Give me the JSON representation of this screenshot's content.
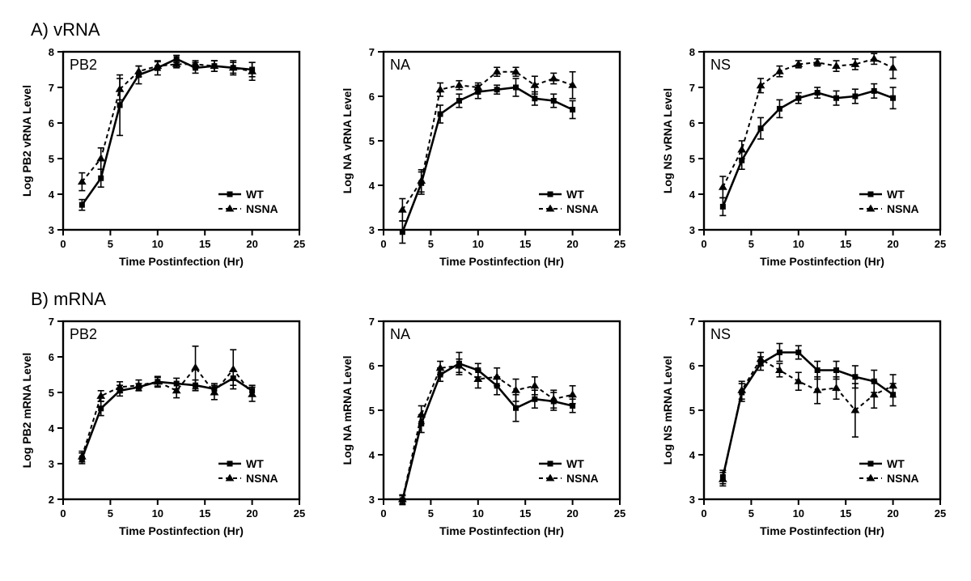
{
  "sections": {
    "A": {
      "label": "A) vRNA"
    },
    "B": {
      "label": "B) mRNA"
    }
  },
  "global": {
    "xlabel": "Time Postinfection  (Hr)",
    "xlim": [
      0,
      25
    ],
    "xticks": [
      0,
      5,
      10,
      15,
      20,
      25
    ],
    "x_data": [
      2,
      4,
      6,
      8,
      10,
      12,
      14,
      16,
      18,
      20
    ],
    "colors": {
      "axis": "#000000",
      "wt": "#000000",
      "nsna": "#000000",
      "bg": "#ffffff"
    },
    "legend": {
      "wt": "WT",
      "nsna": "NSNA"
    },
    "axis_fontsize": 14,
    "tick_fontsize": 13,
    "inset_fontsize": 18,
    "line_width_wt": 2.6,
    "line_width_nsna": 2.0,
    "marker_size_wt": 7,
    "marker_size_nsna": 7,
    "dash": "5,4"
  },
  "panels": [
    {
      "id": "A_PB2",
      "inset": "PB2",
      "ylabel": "Log PB2 vRNA Level",
      "ylim": [
        3,
        8
      ],
      "yticks": [
        3,
        4,
        5,
        6,
        7,
        8
      ],
      "legend_pos": "bottom-right",
      "wt": {
        "y": [
          3.7,
          4.45,
          6.5,
          7.35,
          7.55,
          7.8,
          7.55,
          7.6,
          7.55,
          7.5
        ],
        "err": [
          0.15,
          0.25,
          0.85,
          0.25,
          0.2,
          0.1,
          0.15,
          0.15,
          0.2,
          0.2
        ]
      },
      "nsna": {
        "y": [
          4.35,
          5.0,
          6.95,
          7.45,
          7.6,
          7.65,
          7.65,
          7.6,
          7.55,
          7.45
        ],
        "err": [
          0.25,
          0.3,
          0.3,
          0.15,
          0.12,
          0.1,
          0.1,
          0.15,
          0.15,
          0.25
        ]
      }
    },
    {
      "id": "A_NA",
      "inset": "NA",
      "ylabel": "Log NA vRNA Level",
      "ylim": [
        3,
        7
      ],
      "yticks": [
        3,
        4,
        5,
        6,
        7
      ],
      "legend_pos": "bottom-right",
      "wt": {
        "y": [
          2.95,
          4.05,
          5.6,
          5.9,
          6.1,
          6.15,
          6.2,
          5.95,
          5.9,
          5.7
        ],
        "err": [
          0.25,
          0.25,
          0.2,
          0.15,
          0.15,
          0.1,
          0.2,
          0.15,
          0.15,
          0.2
        ]
      },
      "nsna": {
        "y": [
          3.45,
          4.1,
          6.15,
          6.25,
          6.2,
          6.55,
          6.55,
          6.25,
          6.4,
          6.25
        ],
        "err": [
          0.25,
          0.25,
          0.15,
          0.1,
          0.1,
          0.1,
          0.1,
          0.2,
          0.12,
          0.3
        ]
      }
    },
    {
      "id": "A_NS",
      "inset": "NS",
      "ylabel": "Log NS vRNA Level",
      "ylim": [
        3,
        8
      ],
      "yticks": [
        3,
        4,
        5,
        6,
        7,
        8
      ],
      "legend_pos": "bottom-right",
      "wt": {
        "y": [
          3.65,
          4.95,
          5.85,
          6.4,
          6.7,
          6.85,
          6.7,
          6.75,
          6.9,
          6.7
        ],
        "err": [
          0.25,
          0.25,
          0.3,
          0.25,
          0.15,
          0.15,
          0.2,
          0.2,
          0.2,
          0.3
        ]
      },
      "nsna": {
        "y": [
          4.2,
          5.25,
          7.05,
          7.45,
          7.65,
          7.7,
          7.6,
          7.65,
          7.8,
          7.55
        ],
        "err": [
          0.3,
          0.25,
          0.2,
          0.15,
          0.1,
          0.1,
          0.15,
          0.15,
          0.15,
          0.3
        ]
      }
    },
    {
      "id": "B_PB2",
      "inset": "PB2",
      "ylabel": "Log PB2 mRNA Level",
      "ylim": [
        2,
        7
      ],
      "yticks": [
        2,
        3,
        4,
        5,
        6,
        7
      ],
      "legend_pos": "bottom-right",
      "wt": {
        "y": [
          3.15,
          4.55,
          5.05,
          5.15,
          5.3,
          5.25,
          5.2,
          5.1,
          5.4,
          5.05
        ],
        "err": [
          0.15,
          0.2,
          0.15,
          0.1,
          0.12,
          0.15,
          0.15,
          0.15,
          0.2,
          0.15
        ]
      },
      "nsna": {
        "y": [
          3.2,
          4.9,
          5.15,
          5.2,
          5.3,
          5.05,
          5.7,
          5.0,
          5.65,
          4.95
        ],
        "err": [
          0.15,
          0.15,
          0.15,
          0.15,
          0.15,
          0.2,
          0.6,
          0.2,
          0.55,
          0.2
        ]
      }
    },
    {
      "id": "B_NA",
      "inset": "NA",
      "ylabel": "Log NA mRNA Level",
      "ylim": [
        3,
        7
      ],
      "yticks": [
        3,
        4,
        5,
        6,
        7
      ],
      "legend_pos": "bottom-right",
      "wt": {
        "y": [
          2.98,
          4.7,
          5.8,
          6.05,
          5.9,
          5.55,
          5.05,
          5.25,
          5.2,
          5.1
        ],
        "err": [
          0.1,
          0.2,
          0.15,
          0.25,
          0.15,
          0.2,
          0.3,
          0.2,
          0.2,
          0.15
        ]
      },
      "nsna": {
        "y": [
          3.0,
          4.9,
          5.95,
          6.0,
          5.7,
          5.75,
          5.45,
          5.55,
          5.25,
          5.35
        ],
        "err": [
          0.1,
          0.2,
          0.15,
          0.15,
          0.2,
          0.2,
          0.25,
          0.2,
          0.2,
          0.2
        ]
      }
    },
    {
      "id": "B_NS",
      "inset": "NS",
      "ylabel": "Log NS mRNA Level",
      "ylim": [
        3,
        7
      ],
      "yticks": [
        3,
        4,
        5,
        6,
        7
      ],
      "legend_pos": "bottom-right",
      "wt": {
        "y": [
          3.5,
          5.4,
          6.05,
          6.3,
          6.3,
          5.9,
          5.9,
          5.75,
          5.65,
          5.35
        ],
        "err": [
          0.15,
          0.2,
          0.15,
          0.2,
          0.15,
          0.2,
          0.2,
          0.25,
          0.25,
          0.25
        ]
      },
      "nsna": {
        "y": [
          3.45,
          5.45,
          6.15,
          5.9,
          5.65,
          5.45,
          5.5,
          5.0,
          5.35,
          5.55
        ],
        "err": [
          0.15,
          0.2,
          0.15,
          0.15,
          0.2,
          0.3,
          0.25,
          0.6,
          0.3,
          0.25
        ]
      }
    }
  ]
}
